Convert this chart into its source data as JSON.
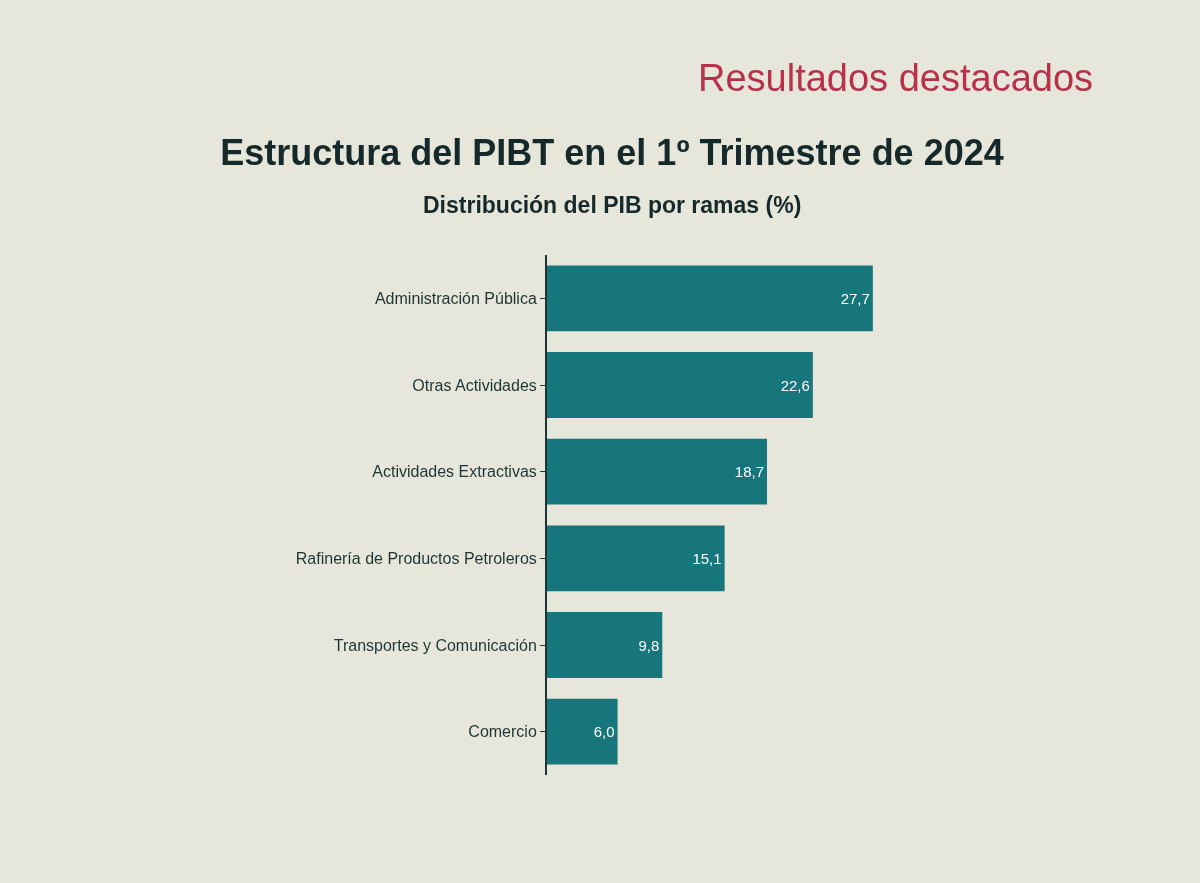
{
  "chart_data": {
    "type": "bar",
    "orientation": "horizontal",
    "title": "Estructura del PIBT en el 1º Trimestre de 2024",
    "subtitle": "Distribución del PIB por ramas (%)",
    "annotations": [
      "Resultados destacados"
    ],
    "categories": [
      "Administración Pública",
      "Otras Actividades",
      "Actividades Extractivas",
      "Rafinería de Productos Petroleros",
      "Transportes y Comunicación",
      "Comercio"
    ],
    "values": [
      27.7,
      22.6,
      18.7,
      15.1,
      9.8,
      6.0
    ],
    "value_labels": [
      "27,7",
      "22,6",
      "18,7",
      "15,1",
      "9,8",
      "6,0"
    ],
    "color": "#17757c",
    "tick_labels": "y"
  }
}
